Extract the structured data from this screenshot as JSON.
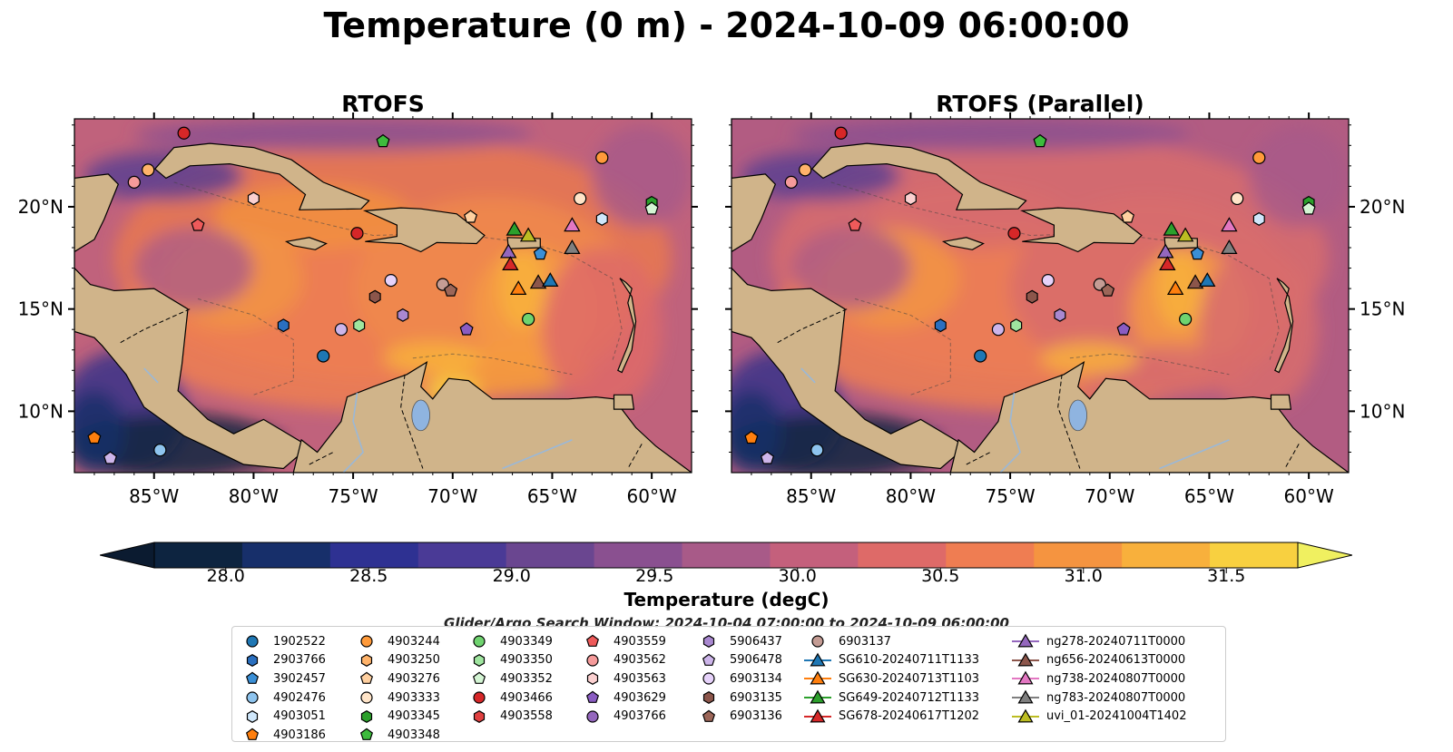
{
  "title": "Temperature (0 m) - 2024-10-09 06:00:00",
  "panels": [
    {
      "title": "RTOFS",
      "variant": "base"
    },
    {
      "title": "RTOFS (Parallel)",
      "variant": "parallel"
    }
  ],
  "map_extent": {
    "lon": [
      -89,
      -58
    ],
    "lat": [
      7,
      24.3
    ]
  },
  "lon_ticks": [
    {
      "value": -85,
      "label": "85°W"
    },
    {
      "value": -80,
      "label": "80°W"
    },
    {
      "value": -75,
      "label": "75°W"
    },
    {
      "value": -70,
      "label": "70°W"
    },
    {
      "value": -65,
      "label": "65°W"
    },
    {
      "value": -60,
      "label": "60°W"
    }
  ],
  "lat_ticks": [
    {
      "value": 20,
      "label": "20°N"
    },
    {
      "value": 15,
      "label": "15°N"
    },
    {
      "value": 10,
      "label": "10°N"
    }
  ],
  "colors": {
    "land": "#d0b48a",
    "coastline": "#000000",
    "river": "#9ab8d8",
    "lake": "#8fb4e0"
  },
  "colorbar": {
    "label": "Temperature (degC)",
    "min": 27.75,
    "max": 31.75,
    "ticks": [
      "28.0",
      "28.5",
      "29.0",
      "29.5",
      "30.0",
      "30.5",
      "31.0",
      "31.5"
    ],
    "tick_values": [
      28.0,
      28.5,
      29.0,
      29.5,
      30.0,
      30.5,
      31.0,
      31.5
    ],
    "colors": [
      "#0d2440",
      "#172f6a",
      "#2e3192",
      "#4a3a96",
      "#6a4690",
      "#8a5090",
      "#a85a88",
      "#c4607c",
      "#de6a68",
      "#ef7d52",
      "#f59440",
      "#f8b03c",
      "#f8d040"
    ],
    "extend_low": "#0b1b30",
    "extend_high": "#f0f060"
  },
  "search_window": "Glider/Argo Search Window: 2024-10-04 07:00:00 to 2024-10-09 06:00:00",
  "legend": [
    [
      {
        "label": "1902522",
        "marker": "circle",
        "color": "#1f77b4"
      },
      {
        "label": "2903766",
        "marker": "hexagon",
        "color": "#2a6fbf"
      },
      {
        "label": "3902457",
        "marker": "pentagon",
        "color": "#3a8fd6"
      },
      {
        "label": "4902476",
        "marker": "circle",
        "color": "#8ec4ee"
      },
      {
        "label": "4903051",
        "marker": "hexagon",
        "color": "#cfe7fb"
      },
      {
        "label": "4903186",
        "marker": "pentagon",
        "color": "#ff7f0e"
      }
    ],
    [
      {
        "label": "4903244",
        "marker": "circle",
        "color": "#ff9a3a"
      },
      {
        "label": "4903250",
        "marker": "hexagon",
        "color": "#ffb36a"
      },
      {
        "label": "4903276",
        "marker": "pentagon",
        "color": "#ffd0a0"
      },
      {
        "label": "4903333",
        "marker": "circle",
        "color": "#ffe4c8"
      },
      {
        "label": "4903345",
        "marker": "hexagon",
        "color": "#2ca02c"
      },
      {
        "label": "4903348",
        "marker": "pentagon",
        "color": "#3dbb3d"
      }
    ],
    [
      {
        "label": "4903349",
        "marker": "circle",
        "color": "#6fd36f"
      },
      {
        "label": "4903350",
        "marker": "hexagon",
        "color": "#9fe59f"
      },
      {
        "label": "4903352",
        "marker": "pentagon",
        "color": "#d4f5d4"
      },
      {
        "label": "4903466",
        "marker": "circle",
        "color": "#d62728"
      },
      {
        "label": "4903558",
        "marker": "hexagon",
        "color": "#e04040"
      }
    ],
    [
      {
        "label": "4903559",
        "marker": "pentagon",
        "color": "#ee5a5a"
      },
      {
        "label": "4903562",
        "marker": "circle",
        "color": "#f59a9a"
      },
      {
        "label": "4903563",
        "marker": "hexagon",
        "color": "#fbd0d0"
      },
      {
        "label": "4903629",
        "marker": "pentagon",
        "color": "#8a5cc2"
      },
      {
        "label": "4903766",
        "marker": "circle",
        "color": "#9467bd"
      }
    ],
    [
      {
        "label": "5906437",
        "marker": "hexagon",
        "color": "#a988d0"
      },
      {
        "label": "5906478",
        "marker": "pentagon",
        "color": "#cdb5ea"
      },
      {
        "label": "6903134",
        "marker": "circle",
        "color": "#e6d2fa"
      },
      {
        "label": "6903135",
        "marker": "hexagon",
        "color": "#8c564b"
      },
      {
        "label": "6903136",
        "marker": "pentagon",
        "color": "#9c6658"
      }
    ],
    [
      {
        "label": "6903137",
        "marker": "circle",
        "color": "#c49c94"
      },
      {
        "label": "SG610-20240711T1133",
        "marker": "triangle",
        "color": "#1f77b4",
        "line": true
      },
      {
        "label": "SG630-20240713T1103",
        "marker": "triangle",
        "color": "#ff7f0e",
        "line": true
      },
      {
        "label": "SG649-20240712T1133",
        "marker": "triangle",
        "color": "#2ca02c",
        "line": true
      },
      {
        "label": "SG678-20240617T1202",
        "marker": "triangle",
        "color": "#d62728",
        "line": true
      }
    ],
    [
      {
        "label": "ng278-20240711T0000",
        "marker": "triangle",
        "color": "#9467bd",
        "line": true
      },
      {
        "label": "ng656-20240613T0000",
        "marker": "triangle",
        "color": "#8c564b",
        "line": true
      },
      {
        "label": "ng738-20240807T0000",
        "marker": "triangle",
        "color": "#e377c2",
        "line": true
      },
      {
        "label": "ng783-20240807T0000",
        "marker": "triangle",
        "color": "#7f7f7f",
        "line": true
      },
      {
        "label": "uvi_01-20241004T1402",
        "marker": "triangle",
        "color": "#bcbd22",
        "line": true
      }
    ]
  ],
  "markers": [
    {
      "lon": -83.5,
      "lat": 23.6,
      "marker": "circle",
      "color": "#d62728"
    },
    {
      "lon": -85.3,
      "lat": 21.8,
      "marker": "circle",
      "color": "#ffb36a"
    },
    {
      "lon": -86.0,
      "lat": 21.2,
      "marker": "circle",
      "color": "#f59a9a"
    },
    {
      "lon": -80.0,
      "lat": 20.4,
      "marker": "hexagon",
      "color": "#fbd0d0"
    },
    {
      "lon": -82.8,
      "lat": 19.1,
      "marker": "pentagon",
      "color": "#ee5a5a"
    },
    {
      "lon": -73.5,
      "lat": 23.2,
      "marker": "pentagon",
      "color": "#3dbb3d"
    },
    {
      "lon": -62.5,
      "lat": 22.4,
      "marker": "circle",
      "color": "#ff9a3a"
    },
    {
      "lon": -60.0,
      "lat": 20.2,
      "marker": "hexagon",
      "color": "#2ca02c"
    },
    {
      "lon": -60.0,
      "lat": 19.9,
      "marker": "pentagon",
      "color": "#d4f5d4"
    },
    {
      "lon": -63.6,
      "lat": 20.4,
      "marker": "circle",
      "color": "#ffe4c8"
    },
    {
      "lon": -62.5,
      "lat": 19.4,
      "marker": "hexagon",
      "color": "#cfe7fb"
    },
    {
      "lon": -69.1,
      "lat": 19.5,
      "marker": "pentagon",
      "color": "#ffd0a0"
    },
    {
      "lon": -74.8,
      "lat": 18.7,
      "marker": "circle",
      "color": "#d62728"
    },
    {
      "lon": -73.1,
      "lat": 16.4,
      "marker": "circle",
      "color": "#e6d2fa"
    },
    {
      "lon": -73.9,
      "lat": 15.6,
      "marker": "hexagon",
      "color": "#8c564b"
    },
    {
      "lon": -70.5,
      "lat": 16.2,
      "marker": "circle",
      "color": "#c49c94"
    },
    {
      "lon": -70.1,
      "lat": 15.9,
      "marker": "pentagon",
      "color": "#9c6658"
    },
    {
      "lon": -72.5,
      "lat": 14.7,
      "marker": "hexagon",
      "color": "#a988d0"
    },
    {
      "lon": -74.7,
      "lat": 14.2,
      "marker": "hexagon",
      "color": "#9fe59f"
    },
    {
      "lon": -75.6,
      "lat": 14.0,
      "marker": "circle",
      "color": "#cdb5ea"
    },
    {
      "lon": -69.3,
      "lat": 14.0,
      "marker": "pentagon",
      "color": "#8a5cc2"
    },
    {
      "lon": -78.5,
      "lat": 14.2,
      "marker": "hexagon",
      "color": "#2a6fbf"
    },
    {
      "lon": -76.5,
      "lat": 12.7,
      "marker": "circle",
      "color": "#1f77b4"
    },
    {
      "lon": -66.2,
      "lat": 14.5,
      "marker": "circle",
      "color": "#6fd36f"
    },
    {
      "lon": -65.6,
      "lat": 17.7,
      "marker": "pentagon",
      "color": "#3a8fd6"
    },
    {
      "lon": -84.7,
      "lat": 8.1,
      "marker": "circle",
      "color": "#8ec4ee"
    },
    {
      "lon": -88.0,
      "lat": 8.7,
      "marker": "pentagon",
      "color": "#ff7f0e"
    },
    {
      "lon": -87.2,
      "lat": 7.7,
      "marker": "pentagon",
      "color": "#cdb5ea"
    },
    {
      "lon": -66.9,
      "lat": 18.9,
      "marker": "triangle",
      "color": "#2ca02c"
    },
    {
      "lon": -66.2,
      "lat": 18.6,
      "marker": "triangle",
      "color": "#bcbd22"
    },
    {
      "lon": -67.2,
      "lat": 17.8,
      "marker": "triangle",
      "color": "#9467bd"
    },
    {
      "lon": -67.1,
      "lat": 17.2,
      "marker": "triangle",
      "color": "#d62728"
    },
    {
      "lon": -66.7,
      "lat": 16.0,
      "marker": "triangle",
      "color": "#ff7f0e"
    },
    {
      "lon": -65.7,
      "lat": 16.3,
      "marker": "triangle",
      "color": "#8c564b"
    },
    {
      "lon": -65.1,
      "lat": 16.4,
      "marker": "triangle",
      "color": "#1f77b4"
    },
    {
      "lon": -64.0,
      "lat": 19.1,
      "marker": "triangle",
      "color": "#e377c2"
    },
    {
      "lon": -64.0,
      "lat": 18.0,
      "marker": "triangle",
      "color": "#7f7f7f"
    }
  ]
}
